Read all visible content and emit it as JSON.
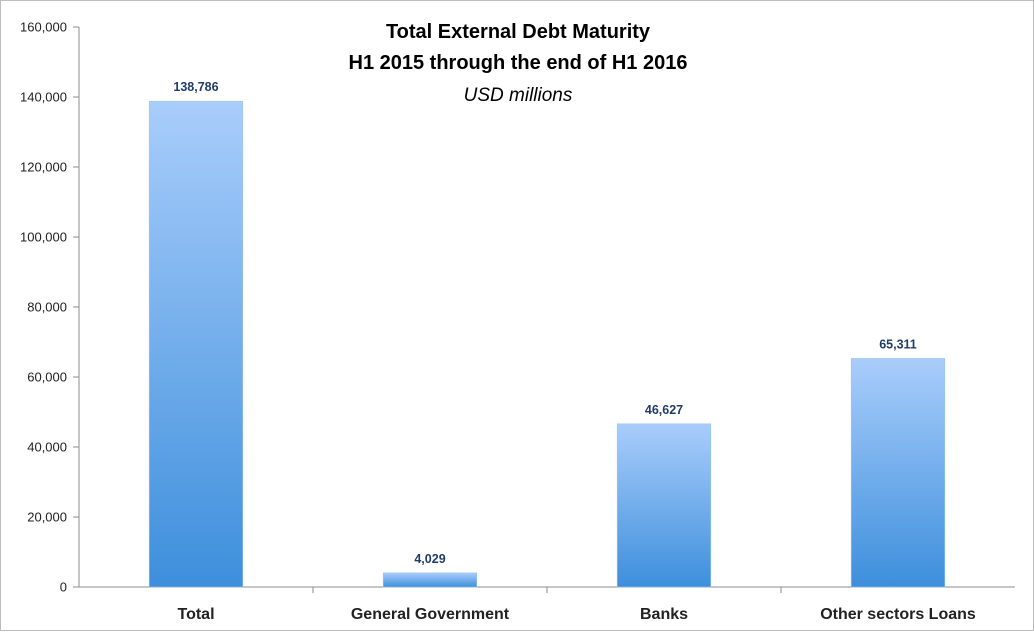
{
  "chart_data": {
    "type": "bar",
    "title": "Total External Debt Maturity",
    "title_line2": "H1 2015 through the end of H1 2016",
    "subtitle": "USD millions",
    "categories": [
      "Total",
      "General Government",
      "Banks",
      "Other sectors Loans"
    ],
    "values": [
      138786,
      4029,
      46627,
      65311
    ],
    "data_labels": [
      "138,786",
      "4,029",
      "46,627",
      "65,311"
    ],
    "ylim": [
      0,
      160000
    ],
    "yticks": [
      0,
      20000,
      40000,
      60000,
      80000,
      100000,
      120000,
      140000,
      160000
    ],
    "ytick_labels": [
      "0",
      "20,000",
      "40,000",
      "60,000",
      "80,000",
      "100,000",
      "120,000",
      "140,000",
      "160,000"
    ],
    "xlabel": "",
    "ylabel": "",
    "grid": false,
    "legend": "none",
    "colors": {
      "bar_top": "#a9cdfb",
      "bar_bottom": "#3d8fdc",
      "data_label": "#1f3d6b",
      "axis": "#8c8c8c"
    }
  }
}
